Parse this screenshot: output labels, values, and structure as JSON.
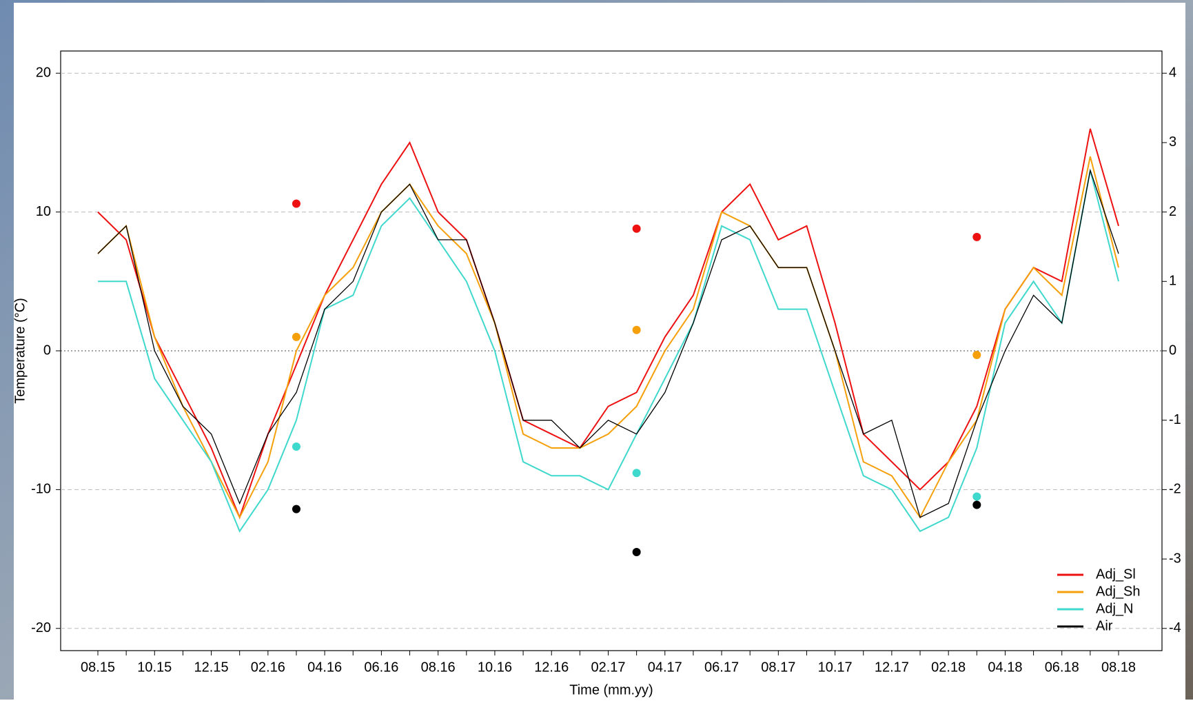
{
  "chart_data": {
    "type": "line",
    "y_label": "Temperature (°C)",
    "x_label": "Time (mm.yy)",
    "categories": [
      "08.15",
      null,
      "10.15",
      null,
      "12.15",
      null,
      "02.16",
      null,
      "04.16",
      null,
      "06.16",
      null,
      "08.16",
      null,
      "10.16",
      null,
      "12.16",
      null,
      "02.17",
      null,
      "04.17",
      null,
      "06.17",
      null,
      "08.17",
      null,
      "10.17",
      null,
      "12.17",
      null,
      "02.18",
      null,
      "04.18",
      null,
      "06.18",
      null,
      "08.18"
    ],
    "ylim": [
      -21.6,
      21.6
    ],
    "yticks": [
      -20,
      -10,
      0,
      10,
      20
    ],
    "y2lim": [
      -4.32,
      4.32
    ],
    "y2ticks": [
      -4,
      -3,
      -2,
      -1,
      0,
      1,
      2,
      3,
      4
    ],
    "grid": true,
    "legend": "bottom-right",
    "series": [
      {
        "name": "Adj_Sl",
        "color": "#ee1111",
        "values": [
          10,
          8,
          1,
          -3,
          -7,
          -12,
          -6,
          -1,
          4,
          8,
          12,
          15,
          10,
          8,
          2,
          -5,
          -6,
          -7,
          -4,
          -3,
          1,
          4,
          10,
          12,
          8,
          9,
          2,
          -6,
          -8,
          -10,
          -8,
          -4,
          3,
          6,
          5,
          16,
          9
        ],
        "y2_values": [
          null,
          null,
          null,
          null,
          null,
          null,
          null,
          2.12,
          null,
          null,
          null,
          null,
          null,
          null,
          null,
          null,
          null,
          null,
          null,
          1.76,
          null,
          null,
          null,
          null,
          null,
          null,
          null,
          null,
          null,
          null,
          null,
          1.64,
          null,
          null,
          null,
          null,
          null
        ]
      },
      {
        "name": "Adj_Sh",
        "color": "#f5a00a",
        "values": [
          7,
          9,
          1,
          -4,
          -8,
          -12,
          -8,
          0,
          4,
          6,
          10,
          12,
          9,
          7,
          2,
          -6,
          -7,
          -7,
          -6,
          -4,
          0,
          3,
          10,
          9,
          6,
          6,
          0,
          -8,
          -9,
          -12,
          -8,
          -5,
          3,
          6,
          4,
          14,
          6
        ],
        "y2_values": [
          null,
          null,
          null,
          null,
          null,
          null,
          null,
          0.2,
          null,
          null,
          null,
          null,
          null,
          null,
          null,
          null,
          null,
          null,
          null,
          0.3,
          null,
          null,
          null,
          null,
          null,
          null,
          null,
          null,
          null,
          null,
          null,
          -0.06,
          null,
          null,
          null,
          null,
          null
        ]
      },
      {
        "name": "Adj_N",
        "color": "#3fd8cc",
        "values": [
          5,
          5,
          -2,
          -5,
          -8,
          -13,
          -10,
          -5,
          3,
          4,
          9,
          11,
          8,
          5,
          0,
          -8,
          -9,
          -9,
          -10,
          -6,
          -2,
          2,
          9,
          8,
          3,
          3,
          -3,
          -9,
          -10,
          -13,
          -12,
          -7,
          2,
          5,
          2,
          13,
          5
        ],
        "y2_values": [
          null,
          null,
          null,
          null,
          null,
          null,
          null,
          -1.38,
          null,
          null,
          null,
          null,
          null,
          null,
          null,
          null,
          null,
          null,
          null,
          -1.76,
          null,
          null,
          null,
          null,
          null,
          null,
          null,
          null,
          null,
          null,
          null,
          -2.1,
          null,
          null,
          null,
          null,
          null
        ]
      },
      {
        "name": "Air",
        "color": "#000000",
        "values": [
          7,
          9,
          0,
          -4,
          -6,
          -11,
          -6,
          -3,
          3,
          5,
          10,
          12,
          8,
          8,
          2,
          -5,
          -5,
          -7,
          -5,
          -6,
          -3,
          2,
          8,
          9,
          6,
          6,
          0,
          -6,
          -5,
          -12,
          -11,
          -5,
          0,
          4,
          2,
          13,
          7
        ],
        "y2_values": [
          null,
          null,
          null,
          null,
          null,
          null,
          null,
          -2.28,
          null,
          null,
          null,
          null,
          null,
          null,
          null,
          null,
          null,
          null,
          null,
          -2.9,
          null,
          null,
          null,
          null,
          null,
          null,
          null,
          null,
          null,
          null,
          null,
          -2.22,
          null,
          null,
          null,
          null,
          null
        ]
      }
    ]
  }
}
